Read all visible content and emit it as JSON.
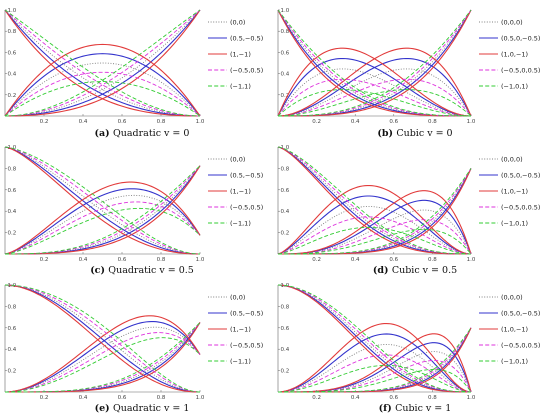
{
  "colors": {
    "gray": "#808080",
    "blue": "#3333cc",
    "red": "#e23b3b",
    "magenta": "#dd33dd",
    "green": "#33cc33"
  },
  "chart_data": [
    {
      "type": "line",
      "id": "a",
      "caption_letter": "(a)",
      "caption_text": "Quadratic v = 0",
      "degree": 2,
      "v": 0,
      "xlim": [
        0,
        1
      ],
      "ylim": [
        0,
        1
      ],
      "xticks": [
        "0.2",
        "0.4",
        "0.6",
        "0.8",
        "1.0"
      ],
      "yticks": [
        "0.2",
        "0.4",
        "0.6",
        "0.8",
        "1.0"
      ],
      "legend": [
        "(0,0)",
        "(0.5,−0.5)",
        "(1,−1)",
        "(−0.5,0.5)",
        "(−1,1)"
      ],
      "series": [
        {
          "name": "(0,0)",
          "color": "gray",
          "dash": "dotted",
          "params": [
            0,
            0
          ]
        },
        {
          "name": "(0.5,−0.5)",
          "color": "blue",
          "dash": "solid",
          "params": [
            0.5,
            -0.5
          ]
        },
        {
          "name": "(1,−1)",
          "color": "red",
          "dash": "solid",
          "params": [
            1,
            -1
          ]
        },
        {
          "name": "(−0.5,0.5)",
          "color": "magenta",
          "dash": "dashed",
          "params": [
            -0.5,
            0.5
          ]
        },
        {
          "name": "(−1,1)",
          "color": "green",
          "dash": "dashed",
          "params": [
            -1,
            1
          ]
        }
      ]
    },
    {
      "type": "line",
      "id": "b",
      "caption_letter": "(b)",
      "caption_text": "Cubic v = 0",
      "degree": 3,
      "v": 0,
      "xlim": [
        0,
        1
      ],
      "ylim": [
        0,
        1
      ],
      "xticks": [
        "0.2",
        "0.4",
        "0.6",
        "0.8",
        "1.0"
      ],
      "yticks": [
        "0.2",
        "0.4",
        "0.6",
        "0.8",
        "1.0"
      ],
      "legend": [
        "(0,0,0)",
        "(0.5,0,−0.5)",
        "(1,0,−1)",
        "(−0.5,0,0.5)",
        "(−1,0,1)"
      ],
      "series": [
        {
          "name": "(0,0,0)",
          "color": "gray",
          "dash": "dotted",
          "params": [
            0,
            0
          ]
        },
        {
          "name": "(0.5,0,−0.5)",
          "color": "blue",
          "dash": "solid",
          "params": [
            0.5,
            -0.5
          ]
        },
        {
          "name": "(1,0,−1)",
          "color": "red",
          "dash": "solid",
          "params": [
            1,
            -1
          ]
        },
        {
          "name": "(−0.5,0,0.5)",
          "color": "magenta",
          "dash": "dashed",
          "params": [
            -0.5,
            0.5
          ]
        },
        {
          "name": "(−1,0,1)",
          "color": "green",
          "dash": "dashed",
          "params": [
            -1,
            1
          ]
        }
      ]
    },
    {
      "type": "line",
      "id": "c",
      "caption_letter": "(c)",
      "caption_text": "Quadratic v = 0.5",
      "degree": 2,
      "v": 0.5,
      "xlim": [
        0,
        1
      ],
      "ylim": [
        0,
        1
      ],
      "xticks": [
        "0.2",
        "0.4",
        "0.6",
        "0.8",
        "1.0"
      ],
      "yticks": [
        "0.2",
        "0.4",
        "0.6",
        "0.8",
        "1.0"
      ],
      "legend": [
        "(0,0)",
        "(0.5,−0.5)",
        "(1,−1)",
        "(−0.5,0.5)",
        "(−1,1)"
      ],
      "series": [
        {
          "name": "(0,0)",
          "color": "gray",
          "dash": "dotted",
          "params": [
            0,
            0
          ]
        },
        {
          "name": "(0.5,−0.5)",
          "color": "blue",
          "dash": "solid",
          "params": [
            0.5,
            -0.5
          ]
        },
        {
          "name": "(1,−1)",
          "color": "red",
          "dash": "solid",
          "params": [
            1,
            -1
          ]
        },
        {
          "name": "(−0.5,0.5)",
          "color": "magenta",
          "dash": "dashed",
          "params": [
            -0.5,
            0.5
          ]
        },
        {
          "name": "(−1,1)",
          "color": "green",
          "dash": "dashed",
          "params": [
            -1,
            1
          ]
        }
      ]
    },
    {
      "type": "line",
      "id": "d",
      "caption_letter": "(d)",
      "caption_text": "Cubic v = 0.5",
      "degree": 3,
      "v": 0.5,
      "xlim": [
        0,
        1
      ],
      "ylim": [
        0,
        1
      ],
      "xticks": [
        "0.2",
        "0.4",
        "0.6",
        "0.8",
        "1.0"
      ],
      "yticks": [
        "0.2",
        "0.4",
        "0.6",
        "0.8",
        "1.0"
      ],
      "legend": [
        "(0,0,0)",
        "(0.5,0,−0.5)",
        "(1,0,−1)",
        "(−0.5,0,0.5)",
        "(−1,0,1)"
      ],
      "series": [
        {
          "name": "(0,0,0)",
          "color": "gray",
          "dash": "dotted",
          "params": [
            0,
            0
          ]
        },
        {
          "name": "(0.5,0,−0.5)",
          "color": "blue",
          "dash": "solid",
          "params": [
            0.5,
            -0.5
          ]
        },
        {
          "name": "(1,0,−1)",
          "color": "red",
          "dash": "solid",
          "params": [
            1,
            -1
          ]
        },
        {
          "name": "(−0.5,0,0.5)",
          "color": "magenta",
          "dash": "dashed",
          "params": [
            -0.5,
            0.5
          ]
        },
        {
          "name": "(−1,0,1)",
          "color": "green",
          "dash": "dashed",
          "params": [
            -1,
            1
          ]
        }
      ]
    },
    {
      "type": "line",
      "id": "e",
      "caption_letter": "(e)",
      "caption_text": "Quadratic v = 1",
      "degree": 2,
      "v": 1,
      "xlim": [
        0,
        1
      ],
      "ylim": [
        0,
        1
      ],
      "xticks": [
        "0.2",
        "0.4",
        "0.6",
        "0.8",
        "1.0"
      ],
      "yticks": [
        "0.2",
        "0.4",
        "0.6",
        "0.8",
        "1.0"
      ],
      "legend": [
        "(0,0)",
        "(0.5,−0.5)",
        "(1,−1)",
        "(−0.5,0.5)",
        "(−1,1)"
      ],
      "series": [
        {
          "name": "(0,0)",
          "color": "gray",
          "dash": "dotted",
          "params": [
            0,
            0
          ]
        },
        {
          "name": "(0.5,−0.5)",
          "color": "blue",
          "dash": "solid",
          "params": [
            0.5,
            -0.5
          ]
        },
        {
          "name": "(1,−1)",
          "color": "red",
          "dash": "solid",
          "params": [
            1,
            -1
          ]
        },
        {
          "name": "(−0.5,0.5)",
          "color": "magenta",
          "dash": "dashed",
          "params": [
            -0.5,
            0.5
          ]
        },
        {
          "name": "(−1,1)",
          "color": "green",
          "dash": "dashed",
          "params": [
            -1,
            1
          ]
        }
      ]
    },
    {
      "type": "line",
      "id": "f",
      "caption_letter": "(f)",
      "caption_text": "Cubic v = 1",
      "degree": 3,
      "v": 1,
      "xlim": [
        0,
        1
      ],
      "ylim": [
        0,
        1
      ],
      "xticks": [
        "0.2",
        "0.4",
        "0.6",
        "0.8",
        "1.0"
      ],
      "yticks": [
        "0.2",
        "0.4",
        "0.6",
        "0.8",
        "1.0"
      ],
      "legend": [
        "(0,0,0)",
        "(0.5,0,−0.5)",
        "(1,0,−1)",
        "(−0.5,0,0.5)",
        "(−1,0,1)"
      ],
      "series": [
        {
          "name": "(0,0,0)",
          "color": "gray",
          "dash": "dotted",
          "params": [
            0,
            0
          ]
        },
        {
          "name": "(0.5,0,−0.5)",
          "color": "blue",
          "dash": "solid",
          "params": [
            0.5,
            -0.5
          ]
        },
        {
          "name": "(1,0,−1)",
          "color": "red",
          "dash": "solid",
          "params": [
            1,
            -1
          ]
        },
        {
          "name": "(−0.5,0,0.5)",
          "color": "magenta",
          "dash": "dashed",
          "params": [
            -0.5,
            0.5
          ]
        },
        {
          "name": "(−1,0,1)",
          "color": "green",
          "dash": "dashed",
          "params": [
            -1,
            1
          ]
        }
      ]
    }
  ]
}
